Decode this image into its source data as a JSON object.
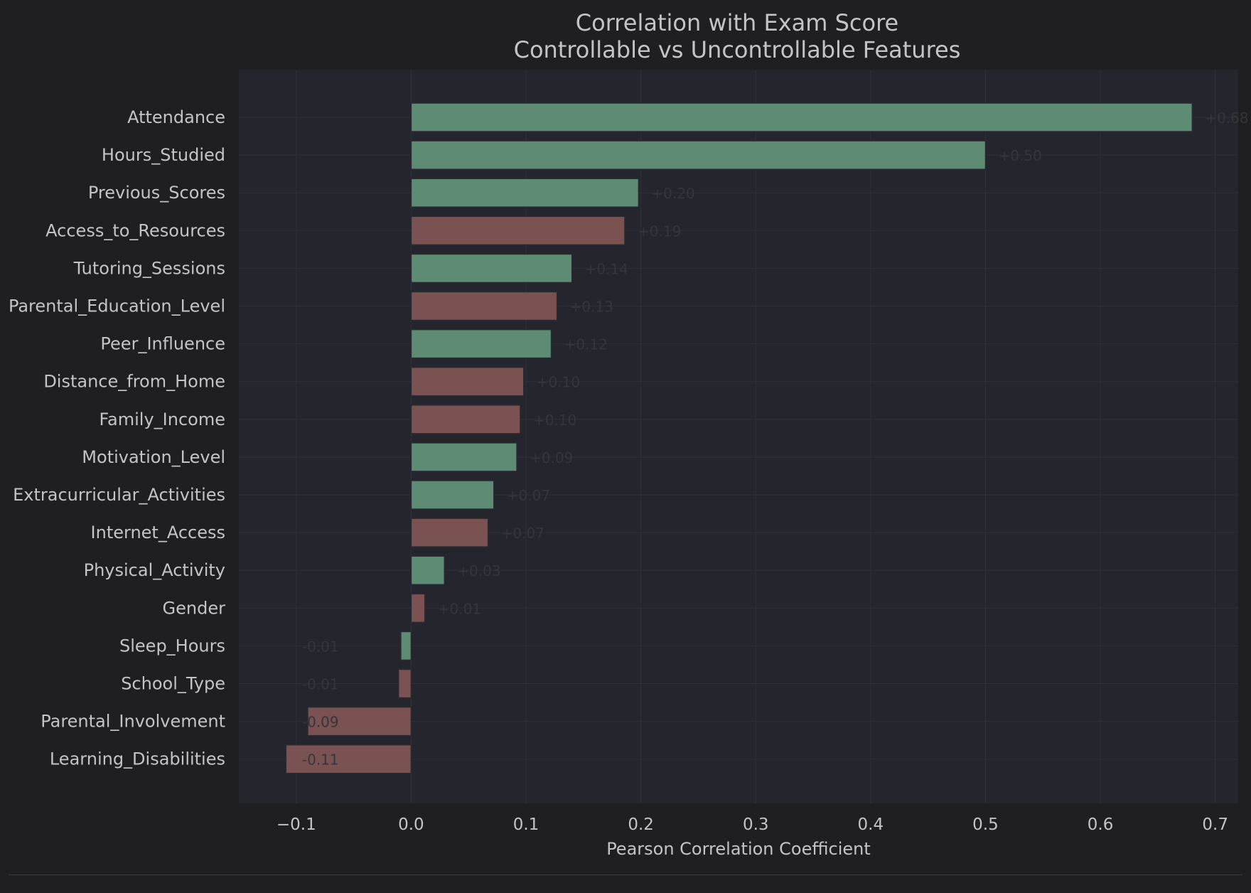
{
  "chart_data": {
    "type": "bar",
    "orientation": "horizontal",
    "title": "Correlation with Exam Score",
    "subtitle": "Controllable vs Uncontrollable Features",
    "xlabel": "Pearson Correlation Coefficient",
    "ylabel": "",
    "xlim": [
      -0.15,
      0.72
    ],
    "xticks": [
      -0.1,
      0.0,
      0.1,
      0.2,
      0.3,
      0.4,
      0.5,
      0.6,
      0.7
    ],
    "xtick_labels": [
      "−0.1",
      "0.0",
      "0.1",
      "0.2",
      "0.3",
      "0.4",
      "0.5",
      "0.6",
      "0.7"
    ],
    "grid": true,
    "colors": {
      "controllable": "#5e8b73",
      "uncontrollable": "#7a5252",
      "background": "#1f1f21",
      "plot_background": "#25252d",
      "text": "#c4c4c8",
      "value_label": "#35353b",
      "grid": "#2f3038"
    },
    "categories": [
      "Attendance",
      "Hours_Studied",
      "Previous_Scores",
      "Access_to_Resources",
      "Tutoring_Sessions",
      "Parental_Education_Level",
      "Peer_Influence",
      "Distance_from_Home",
      "Family_Income",
      "Motivation_Level",
      "Extracurricular_Activities",
      "Internet_Access",
      "Physical_Activity",
      "Gender",
      "Sleep_Hours",
      "School_Type",
      "Parental_Involvement",
      "Learning_Disabilities"
    ],
    "values": [
      0.68,
      0.5,
      0.198,
      0.186,
      0.14,
      0.127,
      0.122,
      0.098,
      0.095,
      0.092,
      0.072,
      0.067,
      0.029,
      0.012,
      -0.009,
      -0.011,
      -0.09,
      -0.109
    ],
    "groups": [
      "controllable",
      "controllable",
      "controllable",
      "uncontrollable",
      "controllable",
      "uncontrollable",
      "controllable",
      "uncontrollable",
      "uncontrollable",
      "controllable",
      "controllable",
      "uncontrollable",
      "controllable",
      "uncontrollable",
      "controllable",
      "uncontrollable",
      "uncontrollable",
      "uncontrollable"
    ],
    "value_labels": [
      "+0.68",
      "+0.50",
      "+0.20",
      "+0.19",
      "+0.14",
      "+0.13",
      "+0.12",
      "+0.10",
      "+0.10",
      "+0.09",
      "+0.07",
      "+0.07",
      "+0.03",
      "+0.01",
      "-0.01",
      "-0.01",
      "-0.09",
      "-0.11"
    ]
  }
}
